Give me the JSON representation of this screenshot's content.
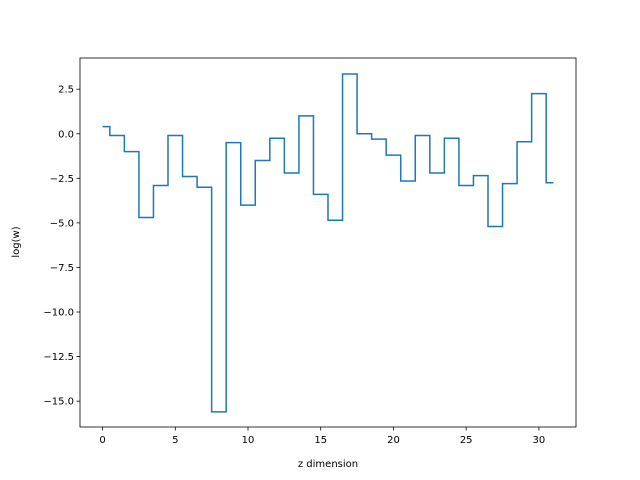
{
  "chart_data": {
    "type": "line",
    "drawstyle": "steps-mid",
    "title": "",
    "xlabel": "z dimension",
    "ylabel": "log(w)",
    "xlim": [
      -1.55,
      32.55
    ],
    "ylim": [
      -16.45,
      4.25
    ],
    "xticks": [
      0,
      5,
      10,
      15,
      20,
      25,
      30
    ],
    "xtick_labels": [
      "0",
      "5",
      "10",
      "15",
      "20",
      "25",
      "30"
    ],
    "yticks": [
      2.5,
      0.0,
      -2.5,
      -5.0,
      -7.5,
      -10.0,
      -12.5,
      -15.0
    ],
    "ytick_labels": [
      "2.5",
      "0.0",
      "−2.5",
      "−5.0",
      "−7.5",
      "−10.0",
      "−12.5",
      "−15.0"
    ],
    "grid": false,
    "series": [
      {
        "color": "#1f77b4",
        "x": [
          0,
          1,
          2,
          3,
          4,
          5,
          6,
          7,
          8,
          9,
          10,
          11,
          12,
          13,
          14,
          15,
          16,
          17,
          18,
          19,
          20,
          21,
          22,
          23,
          24,
          25,
          26,
          27,
          28,
          29,
          30,
          31
        ],
        "values": [
          0.4,
          -0.1,
          -1.0,
          -4.7,
          -2.9,
          -0.1,
          -2.4,
          -3.0,
          -15.6,
          -0.5,
          -4.0,
          -1.5,
          -0.25,
          -2.2,
          1.0,
          -3.4,
          -4.85,
          3.35,
          0.0,
          -0.3,
          -1.2,
          -2.65,
          -0.1,
          -2.2,
          -0.25,
          -2.9,
          -2.35,
          -5.2,
          -2.8,
          -0.45,
          2.25,
          -2.75
        ]
      }
    ]
  }
}
